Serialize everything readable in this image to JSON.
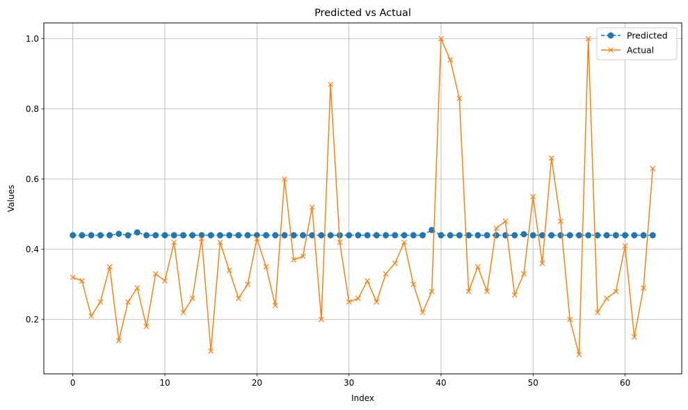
{
  "chart_data": {
    "type": "line",
    "title": "Predicted vs Actual",
    "xlabel": "Index",
    "ylabel": "Values",
    "xlim": [
      -3.15,
      66.15
    ],
    "ylim": [
      0.045,
      1.045
    ],
    "xticks": [
      0,
      10,
      20,
      30,
      40,
      50,
      60
    ],
    "yticks": [
      0.2,
      0.4,
      0.6,
      0.8,
      1.0
    ],
    "ytick_labels": [
      "0.2",
      "0.4",
      "0.6",
      "0.8",
      "1.0"
    ],
    "grid": true,
    "legend_position": "top-right",
    "x": [
      0,
      1,
      2,
      3,
      4,
      5,
      6,
      7,
      8,
      9,
      10,
      11,
      12,
      13,
      14,
      15,
      16,
      17,
      18,
      19,
      20,
      21,
      22,
      23,
      24,
      25,
      26,
      27,
      28,
      29,
      30,
      31,
      32,
      33,
      34,
      35,
      36,
      37,
      38,
      39,
      40,
      41,
      42,
      43,
      44,
      45,
      46,
      47,
      48,
      49,
      50,
      51,
      52,
      53,
      54,
      55,
      56,
      57,
      58,
      59,
      60,
      61,
      62,
      63
    ],
    "series": [
      {
        "name": "Predicted",
        "color": "#1f77b4",
        "marker": "circle",
        "linestyle": "dashed",
        "values": [
          0.44,
          0.44,
          0.44,
          0.44,
          0.44,
          0.444,
          0.44,
          0.448,
          0.44,
          0.44,
          0.44,
          0.44,
          0.44,
          0.44,
          0.44,
          0.44,
          0.44,
          0.44,
          0.44,
          0.44,
          0.44,
          0.44,
          0.44,
          0.44,
          0.44,
          0.44,
          0.44,
          0.44,
          0.44,
          0.44,
          0.44,
          0.44,
          0.44,
          0.44,
          0.44,
          0.44,
          0.44,
          0.44,
          0.44,
          0.455,
          0.44,
          0.44,
          0.44,
          0.44,
          0.44,
          0.44,
          0.44,
          0.44,
          0.44,
          0.443,
          0.44,
          0.44,
          0.44,
          0.44,
          0.44,
          0.44,
          0.44,
          0.44,
          0.44,
          0.44,
          0.44,
          0.44,
          0.44,
          0.44
        ]
      },
      {
        "name": "Actual",
        "color": "#ff7f0e",
        "marker": "x",
        "linestyle": "solid",
        "values": [
          0.32,
          0.31,
          0.21,
          0.25,
          0.35,
          0.14,
          0.25,
          0.29,
          0.18,
          0.33,
          0.31,
          0.42,
          0.22,
          0.26,
          0.43,
          0.11,
          0.42,
          0.34,
          0.26,
          0.3,
          0.43,
          0.35,
          0.24,
          0.6,
          0.37,
          0.38,
          0.52,
          0.2,
          0.87,
          0.42,
          0.25,
          0.26,
          0.31,
          0.25,
          0.33,
          0.36,
          0.42,
          0.3,
          0.22,
          0.28,
          1.0,
          0.94,
          0.83,
          0.28,
          0.35,
          0.28,
          0.46,
          0.48,
          0.27,
          0.33,
          0.55,
          0.36,
          0.66,
          0.48,
          0.2,
          0.1,
          1.0,
          0.22,
          0.26,
          0.28,
          0.41,
          0.15,
          0.29,
          0.63
        ]
      }
    ]
  }
}
